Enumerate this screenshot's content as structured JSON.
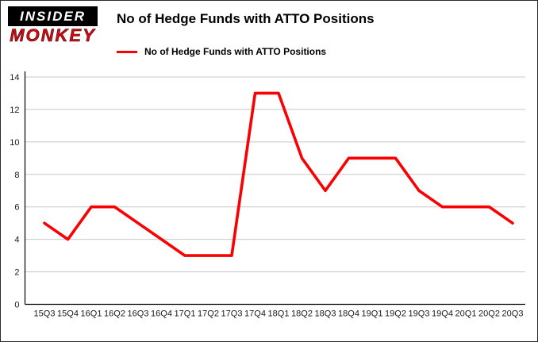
{
  "brand": {
    "line1": "INSIDER",
    "line2": "MONKEY",
    "accent": "#e8000d"
  },
  "title": "No of Hedge Funds with ATTO Positions",
  "legend": "No of Hedge Funds with ATTO Positions",
  "chart_data": {
    "type": "line",
    "title": "No of Hedge Funds with ATTO Positions",
    "categories": [
      "15Q3",
      "15Q4",
      "16Q1",
      "16Q2",
      "16Q3",
      "16Q4",
      "17Q1",
      "17Q2",
      "17Q3",
      "17Q4",
      "18Q1",
      "18Q2",
      "18Q3",
      "18Q4",
      "19Q1",
      "19Q2",
      "19Q3",
      "19Q4",
      "20Q1",
      "20Q2",
      "20Q3"
    ],
    "values": [
      5,
      4,
      6,
      6,
      5,
      4,
      3,
      3,
      3,
      13,
      13,
      9,
      7,
      9,
      9,
      9,
      7,
      6,
      6,
      6,
      5
    ],
    "yticks": [
      0,
      2,
      4,
      6,
      8,
      10,
      12,
      14
    ],
    "ylim": [
      0,
      14
    ],
    "xlabel": "",
    "ylabel": "",
    "grid": true,
    "legend_position": "top",
    "line_color": "#fa0000",
    "grid_color": "#c8c8c8",
    "axis_color": "#000000",
    "tick_label_color": "#1a1a1a"
  }
}
